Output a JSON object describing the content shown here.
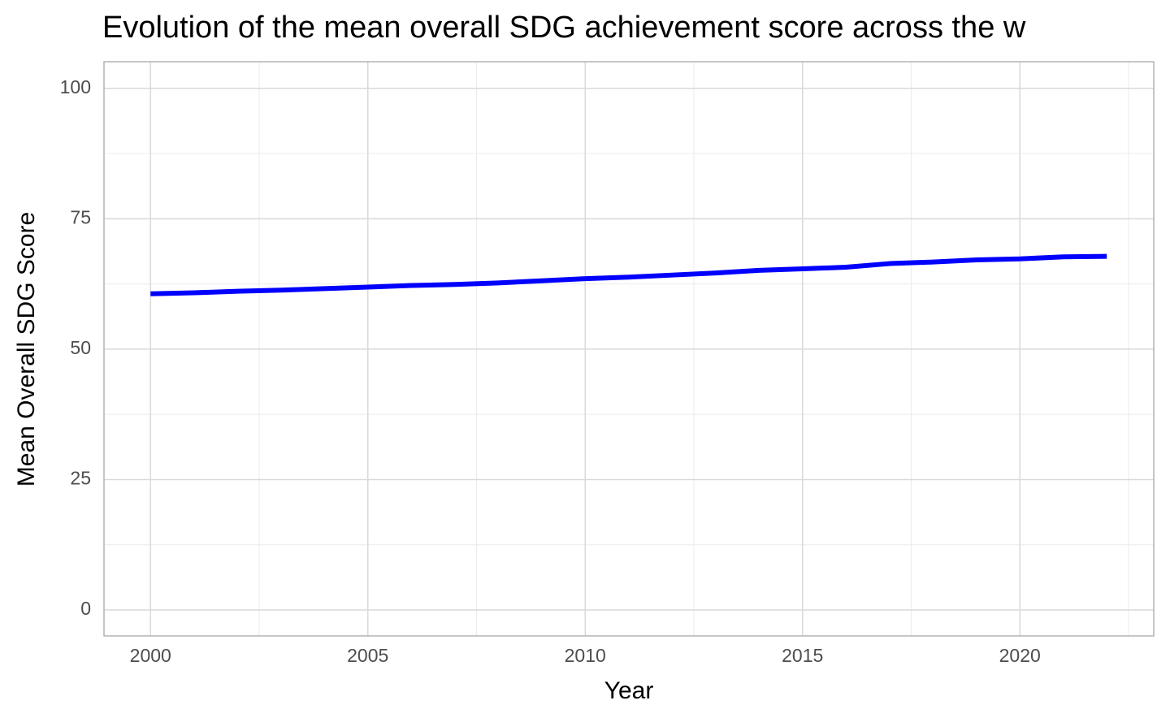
{
  "chart_data": {
    "type": "line",
    "title": "Evolution of the mean overall SDG achievement score across the w",
    "x_label": "Year",
    "y_label": "Mean Overall SDG Score",
    "x": [
      2000,
      2001,
      2002,
      2003,
      2004,
      2005,
      2006,
      2007,
      2008,
      2009,
      2010,
      2011,
      2012,
      2013,
      2014,
      2015,
      2016,
      2017,
      2018,
      2019,
      2020,
      2021,
      2022
    ],
    "series": [
      {
        "color": "#0000ff",
        "values": [
          60.6,
          60.8,
          61.1,
          61.3,
          61.6,
          61.9,
          62.2,
          62.4,
          62.7,
          63.1,
          63.5,
          63.8,
          64.2,
          64.6,
          65.1,
          65.4,
          65.7,
          66.4,
          66.7,
          67.1,
          67.3,
          67.7,
          67.8
        ]
      }
    ],
    "xlim": [
      1998.93,
      2023.08
    ],
    "xticks": [
      2000,
      2005,
      2010,
      2015,
      2020
    ],
    "xminorticks": [
      2002.5,
      2007.5,
      2012.5,
      2017.5,
      2022.5
    ],
    "ylim": [
      -4.98,
      105.1
    ],
    "yticks": [
      0,
      25,
      50,
      75,
      100
    ],
    "yminorticks": [
      12.5,
      37.5,
      62.5,
      87.5
    ],
    "grid": true
  }
}
